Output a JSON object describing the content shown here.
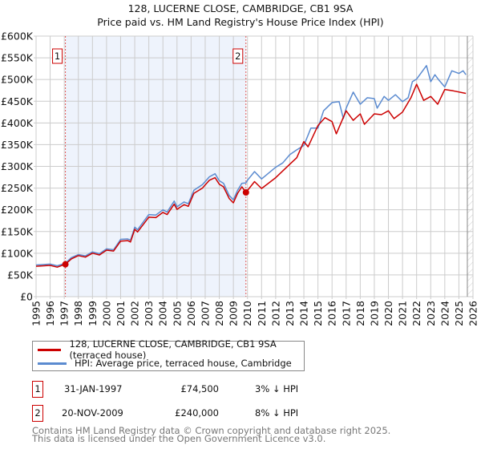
{
  "chart_data": {
    "type": "line",
    "title": "128, LUCERNE CLOSE, CAMBRIDGE, CB1 9SA",
    "subtitle": "Price paid vs. HM Land Registry's House Price Index (HPI)",
    "xlim": [
      1995,
      2026
    ],
    "ylim": [
      0,
      600000
    ],
    "grid": true,
    "x_ticks": [
      "1995",
      "1996",
      "1997",
      "1998",
      "1999",
      "2000",
      "2001",
      "2002",
      "2003",
      "2004",
      "2005",
      "2006",
      "2007",
      "2008",
      "2009",
      "2010",
      "2011",
      "2012",
      "2013",
      "2014",
      "2015",
      "2016",
      "2017",
      "2018",
      "2019",
      "2020",
      "2021",
      "2022",
      "2023",
      "2024",
      "2025",
      "2026"
    ],
    "y_ticks": [
      "£0",
      "£50K",
      "£100K",
      "£150K",
      "£200K",
      "£250K",
      "£300K",
      "£350K",
      "£400K",
      "£450K",
      "£500K",
      "£550K",
      "£600K"
    ],
    "series": [
      {
        "name": "128, LUCERNE CLOSE, CAMBRIDGE, CB1 9SA (terraced house)",
        "color": "#cc0000",
        "x": [
          1995,
          1996,
          1996.5,
          1997.08,
          1997.5,
          1998,
          1998.5,
          1999,
          1999.5,
          2000,
          2000.5,
          2001,
          2001.5,
          2001.7,
          2002,
          2002.2,
          2003,
          2003.5,
          2004,
          2004.3,
          2004.8,
          2005,
          2005.5,
          2005.8,
          2006.2,
          2006.8,
          2007.3,
          2007.7,
          2008,
          2008.3,
          2008.7,
          2009,
          2009.3,
          2009.6,
          2009.89,
          2010.5,
          2011,
          2012,
          2013,
          2013.5,
          2014,
          2014.3,
          2015,
          2015.5,
          2016,
          2016.3,
          2017,
          2017.5,
          2018,
          2018.3,
          2019,
          2019.5,
          2020,
          2020.4,
          2021,
          2021.6,
          2022,
          2022.5,
          2023,
          2023.5,
          2024,
          2024.6,
          2025.5
        ],
        "y": [
          70000,
          72000,
          68000,
          74500,
          87000,
          94500,
          91000,
          100000,
          96000,
          107000,
          105000,
          128000,
          129000,
          126000,
          155000,
          149000,
          183000,
          182000,
          194000,
          189000,
          213000,
          201000,
          212000,
          208000,
          238000,
          250000,
          268000,
          274000,
          259000,
          253000,
          226000,
          216000,
          238000,
          253000,
          240000,
          265000,
          249000,
          274000,
          305000,
          320000,
          357000,
          345000,
          394000,
          412000,
          403000,
          375000,
          428000,
          406000,
          421000,
          397000,
          421000,
          419000,
          428000,
          410000,
          425000,
          458000,
          489000,
          452000,
          461000,
          443000,
          477000,
          474000,
          468000
        ]
      },
      {
        "name": "HPI: Average price, terraced house, Cambridge",
        "color": "#5b8bd0",
        "x": [
          1995,
          1996,
          1996.5,
          1997.08,
          1997.5,
          1998,
          1998.5,
          1999,
          1999.5,
          2000,
          2000.5,
          2001,
          2001.5,
          2001.7,
          2002,
          2002.2,
          2003,
          2003.5,
          2004,
          2004.3,
          2004.8,
          2005,
          2005.5,
          2005.8,
          2006.2,
          2006.8,
          2007.3,
          2007.7,
          2008,
          2008.3,
          2008.7,
          2009,
          2009.3,
          2009.6,
          2009.89,
          2010,
          2010.5,
          2011,
          2012,
          2012.5,
          2013,
          2013.5,
          2014,
          2014.5,
          2015,
          2015.4,
          2016,
          2016.5,
          2016.8,
          2017,
          2017.5,
          2018,
          2018.5,
          2019,
          2019.2,
          2019.7,
          2020,
          2020.5,
          2021,
          2021.4,
          2021.7,
          2022,
          2022.7,
          2023,
          2023.3,
          2023.6,
          2024,
          2024.5,
          2025,
          2025.3,
          2025.5
        ],
        "y": [
          73000,
          75000,
          71000,
          77000,
          90000,
          97000,
          94000,
          103000,
          99000,
          110000,
          108000,
          132000,
          133000,
          130000,
          160000,
          154000,
          189000,
          188000,
          200000,
          195000,
          220000,
          207000,
          218000,
          214000,
          245000,
          258000,
          276000,
          283000,
          267000,
          261000,
          233000,
          223000,
          245000,
          261000,
          262000,
          268000,
          288000,
          271000,
          298000,
          308000,
          327000,
          338000,
          348000,
          388000,
          388000,
          428000,
          447000,
          449000,
          410000,
          434000,
          471000,
          443000,
          458000,
          456000,
          434000,
          461000,
          452000,
          465000,
          449000,
          458000,
          495000,
          501000,
          532000,
          495000,
          511000,
          498000,
          483000,
          520000,
          514000,
          520000,
          511000
        ]
      }
    ],
    "sales": [
      {
        "label": "1",
        "x": 1997.08,
        "price": 74500
      },
      {
        "label": "2",
        "x": 2009.89,
        "price": 240000
      }
    ],
    "hatch_from": 2025.6,
    "legend_position": "bottom"
  },
  "legend": {
    "items": [
      "128, LUCERNE CLOSE, CAMBRIDGE, CB1 9SA (terraced house)",
      "HPI: Average price, terraced house, Cambridge"
    ]
  },
  "transactions": [
    {
      "num": "1",
      "date": "31-JAN-1997",
      "price": "£74,500",
      "hpi": "3% ↓ HPI"
    },
    {
      "num": "2",
      "date": "20-NOV-2009",
      "price": "£240,000",
      "hpi": "8% ↓ HPI"
    }
  ],
  "footer": {
    "line1": "Contains HM Land Registry data © Crown copyright and database right 2025.",
    "line2": "This data is licensed under the Open Government Licence v3.0."
  }
}
